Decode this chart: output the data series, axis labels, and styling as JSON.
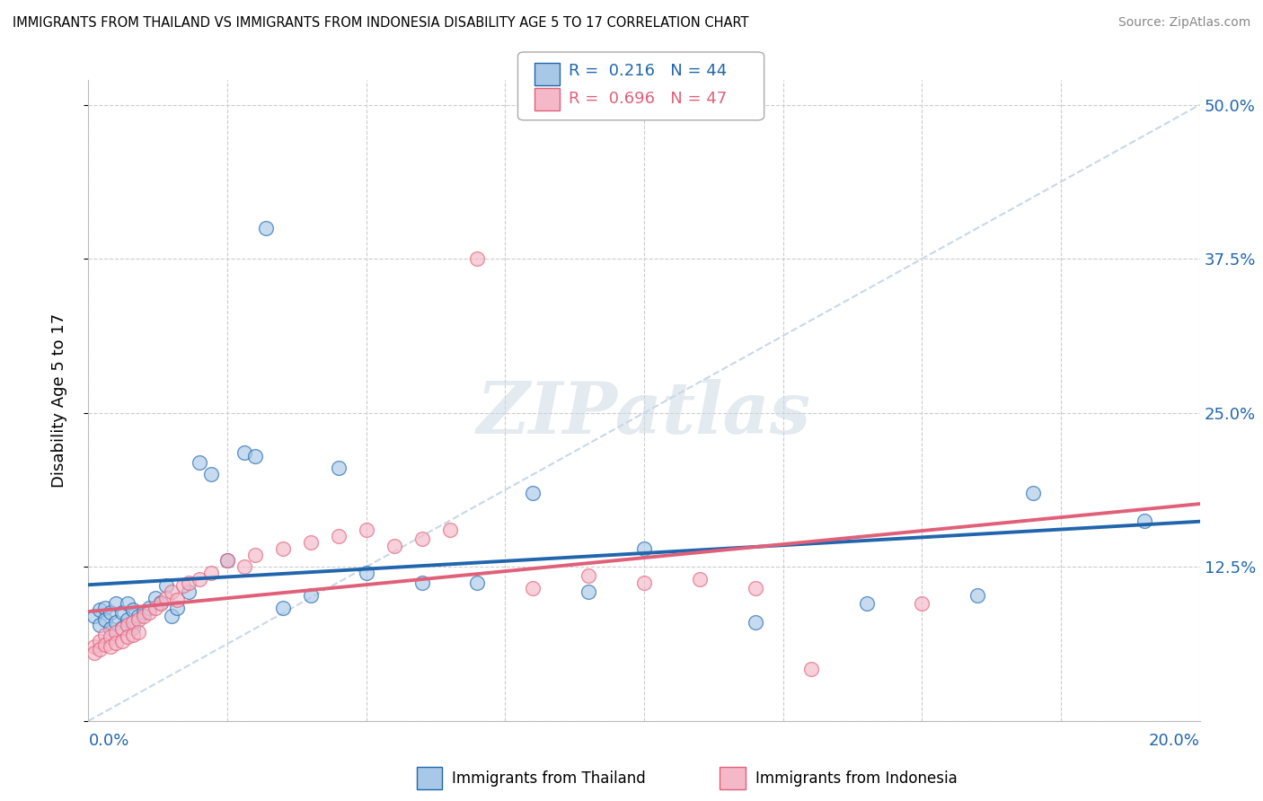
{
  "title": "IMMIGRANTS FROM THAILAND VS IMMIGRANTS FROM INDONESIA DISABILITY AGE 5 TO 17 CORRELATION CHART",
  "source": "Source: ZipAtlas.com",
  "ylabel": "Disability Age 5 to 17",
  "xlim": [
    0.0,
    0.2
  ],
  "ylim": [
    0.0,
    0.52
  ],
  "yticks": [
    0.0,
    0.125,
    0.25,
    0.375,
    0.5
  ],
  "ytick_labels": [
    "",
    "12.5%",
    "25.0%",
    "37.5%",
    "50.0%"
  ],
  "thailand_color": "#a8c8e8",
  "indonesia_color": "#f4b8c8",
  "trendline_thailand_color": "#2166ac",
  "trendline_indonesia_color": "#e0607a",
  "diagonal_color": "#c8d8e8",
  "legend_R_thailand": "R = 0.216",
  "legend_N_thailand": "N = 44",
  "legend_R_indonesia": "R = 0.696",
  "legend_N_indonesia": "N = 47",
  "watermark_text": "ZIPatlas",
  "thailand_x": [
    0.001,
    0.002,
    0.002,
    0.003,
    0.003,
    0.004,
    0.004,
    0.005,
    0.005,
    0.006,
    0.006,
    0.007,
    0.007,
    0.008,
    0.008,
    0.009,
    0.01,
    0.011,
    0.012,
    0.013,
    0.014,
    0.015,
    0.016,
    0.018,
    0.02,
    0.022,
    0.025,
    0.028,
    0.03,
    0.032,
    0.035,
    0.04,
    0.045,
    0.05,
    0.06,
    0.07,
    0.08,
    0.09,
    0.1,
    0.12,
    0.14,
    0.16,
    0.17,
    0.19
  ],
  "thailand_y": [
    0.085,
    0.09,
    0.078,
    0.092,
    0.082,
    0.088,
    0.075,
    0.095,
    0.08,
    0.088,
    0.076,
    0.095,
    0.082,
    0.09,
    0.076,
    0.085,
    0.088,
    0.092,
    0.1,
    0.096,
    0.11,
    0.085,
    0.092,
    0.105,
    0.21,
    0.2,
    0.13,
    0.218,
    0.215,
    0.4,
    0.092,
    0.102,
    0.205,
    0.12,
    0.112,
    0.112,
    0.185,
    0.105,
    0.14,
    0.08,
    0.095,
    0.102,
    0.185,
    0.162
  ],
  "indonesia_x": [
    0.001,
    0.001,
    0.002,
    0.002,
    0.003,
    0.003,
    0.004,
    0.004,
    0.005,
    0.005,
    0.006,
    0.006,
    0.007,
    0.007,
    0.008,
    0.008,
    0.009,
    0.009,
    0.01,
    0.011,
    0.012,
    0.013,
    0.014,
    0.015,
    0.016,
    0.017,
    0.018,
    0.02,
    0.022,
    0.025,
    0.028,
    0.03,
    0.035,
    0.04,
    0.045,
    0.05,
    0.055,
    0.06,
    0.065,
    0.07,
    0.08,
    0.09,
    0.1,
    0.11,
    0.12,
    0.13,
    0.15
  ],
  "indonesia_y": [
    0.06,
    0.055,
    0.065,
    0.058,
    0.07,
    0.062,
    0.068,
    0.06,
    0.072,
    0.063,
    0.075,
    0.065,
    0.078,
    0.068,
    0.08,
    0.07,
    0.082,
    0.072,
    0.085,
    0.088,
    0.092,
    0.095,
    0.1,
    0.105,
    0.098,
    0.11,
    0.112,
    0.115,
    0.12,
    0.13,
    0.125,
    0.135,
    0.14,
    0.145,
    0.15,
    0.155,
    0.142,
    0.148,
    0.155,
    0.375,
    0.108,
    0.118,
    0.112,
    0.115,
    0.108,
    0.042,
    0.095
  ]
}
